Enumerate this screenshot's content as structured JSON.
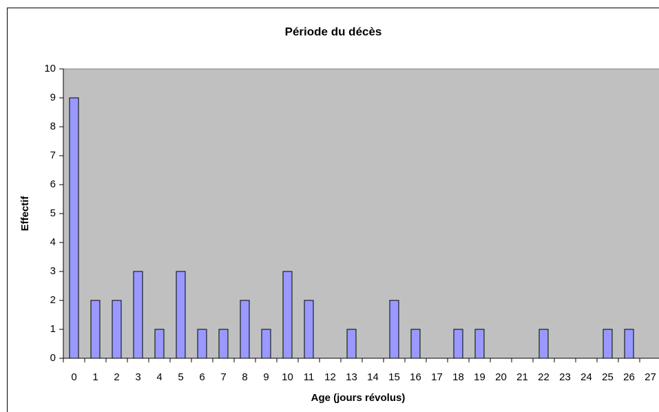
{
  "chart_data": {
    "type": "bar",
    "title": "Période du décès",
    "x_label": "Age (jours révolus)",
    "y_label": "Effectif",
    "categories": [
      "0",
      "1",
      "2",
      "3",
      "4",
      "5",
      "6",
      "7",
      "8",
      "9",
      "10",
      "11",
      "12",
      "13",
      "14",
      "15",
      "16",
      "17",
      "18",
      "19",
      "20",
      "21",
      "22",
      "23",
      "24",
      "25",
      "26",
      "27"
    ],
    "values": [
      9,
      2,
      2,
      3,
      1,
      3,
      1,
      1,
      2,
      1,
      3,
      2,
      0,
      1,
      0,
      2,
      1,
      0,
      1,
      1,
      0,
      0,
      1,
      0,
      0,
      1,
      1,
      0
    ],
    "color": "#9999ff",
    "background": "#c0c0c0",
    "ylim": [
      0,
      10
    ],
    "yticks": [
      0,
      1,
      2,
      3,
      4,
      5,
      6,
      7,
      8,
      9,
      10
    ],
    "grid": false
  }
}
